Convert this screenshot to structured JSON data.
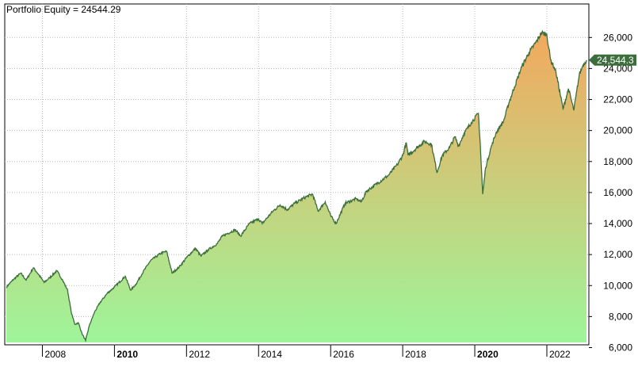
{
  "header": {
    "label": "Portfolio Equity = 24544.29"
  },
  "last_value_tag": "24,544.3",
  "colors": {
    "line": "#3b6e3b",
    "fill_top": "#f3a85e",
    "fill_bottom": "#9ef59a",
    "grid": "#b8b8b8",
    "tag_bg": "#3b6e3b",
    "tag_text": "#ffffff"
  },
  "chart_data": {
    "type": "area",
    "title": "Portfolio Equity = 24544.29",
    "xlabel": "",
    "ylabel": "",
    "xlim": [
      2007.0,
      2023.1
    ],
    "ylim": [
      6000,
      27000
    ],
    "grid": true,
    "y_ticks": [
      6000,
      8000,
      10000,
      12000,
      14000,
      16000,
      18000,
      20000,
      22000,
      24000,
      26000
    ],
    "y_tick_labels": [
      "6,000",
      "8,000",
      "10,000",
      "12,000",
      "14,000",
      "16,000",
      "18,000",
      "20,000",
      "22,000",
      "24,000",
      "26,000"
    ],
    "x_ticks": [
      2008,
      2010,
      2012,
      2014,
      2016,
      2018,
      2020,
      2022
    ],
    "x_tick_labels": [
      "2008",
      "2010",
      "2012",
      "2014",
      "2016",
      "2018",
      "2020",
      "2022"
    ],
    "x_tick_bold": [
      "2010",
      "2020"
    ],
    "series": [
      {
        "last_value": 24544.29,
        "points": [
          [
            2007.0,
            9900
          ],
          [
            2007.2,
            10400
          ],
          [
            2007.4,
            10800
          ],
          [
            2007.55,
            10350
          ],
          [
            2007.75,
            11150
          ],
          [
            2007.9,
            10700
          ],
          [
            2008.05,
            10200
          ],
          [
            2008.2,
            10500
          ],
          [
            2008.4,
            10950
          ],
          [
            2008.55,
            10400
          ],
          [
            2008.7,
            9700
          ],
          [
            2008.8,
            8300
          ],
          [
            2008.9,
            7500
          ],
          [
            2009.0,
            7600
          ],
          [
            2009.1,
            6900
          ],
          [
            2009.2,
            6450
          ],
          [
            2009.3,
            7400
          ],
          [
            2009.45,
            8300
          ],
          [
            2009.6,
            8900
          ],
          [
            2009.8,
            9500
          ],
          [
            2010.0,
            9900
          ],
          [
            2010.3,
            10600
          ],
          [
            2010.45,
            9700
          ],
          [
            2010.6,
            10100
          ],
          [
            2010.8,
            10900
          ],
          [
            2011.0,
            11600
          ],
          [
            2011.3,
            12100
          ],
          [
            2011.45,
            12200
          ],
          [
            2011.6,
            10800
          ],
          [
            2011.8,
            11200
          ],
          [
            2012.0,
            11800
          ],
          [
            2012.25,
            12400
          ],
          [
            2012.4,
            11900
          ],
          [
            2012.6,
            12300
          ],
          [
            2012.85,
            12700
          ],
          [
            2013.0,
            13200
          ],
          [
            2013.35,
            13600
          ],
          [
            2013.5,
            13200
          ],
          [
            2013.75,
            14000
          ],
          [
            2014.0,
            14300
          ],
          [
            2014.1,
            14000
          ],
          [
            2014.4,
            14800
          ],
          [
            2014.6,
            15200
          ],
          [
            2014.8,
            14900
          ],
          [
            2015.0,
            15300
          ],
          [
            2015.3,
            15700
          ],
          [
            2015.5,
            15900
          ],
          [
            2015.65,
            14800
          ],
          [
            2015.85,
            15400
          ],
          [
            2016.0,
            14500
          ],
          [
            2016.15,
            14000
          ],
          [
            2016.4,
            15300
          ],
          [
            2016.7,
            15600
          ],
          [
            2016.85,
            15400
          ],
          [
            2017.0,
            16100
          ],
          [
            2017.3,
            16600
          ],
          [
            2017.6,
            17100
          ],
          [
            2017.85,
            17800
          ],
          [
            2018.0,
            18400
          ],
          [
            2018.1,
            19200
          ],
          [
            2018.15,
            18400
          ],
          [
            2018.4,
            18900
          ],
          [
            2018.6,
            19300
          ],
          [
            2018.8,
            19100
          ],
          [
            2018.95,
            17300
          ],
          [
            2019.1,
            18400
          ],
          [
            2019.3,
            18900
          ],
          [
            2019.45,
            19600
          ],
          [
            2019.55,
            19000
          ],
          [
            2019.7,
            19800
          ],
          [
            2019.9,
            20500
          ],
          [
            2020.1,
            21100
          ],
          [
            2020.15,
            19200
          ],
          [
            2020.22,
            15900
          ],
          [
            2020.3,
            17600
          ],
          [
            2020.45,
            18900
          ],
          [
            2020.6,
            19900
          ],
          [
            2020.8,
            20600
          ],
          [
            2020.95,
            21800
          ],
          [
            2021.1,
            22800
          ],
          [
            2021.3,
            24100
          ],
          [
            2021.5,
            25000
          ],
          [
            2021.7,
            25700
          ],
          [
            2021.85,
            26300
          ],
          [
            2022.0,
            26200
          ],
          [
            2022.1,
            24600
          ],
          [
            2022.25,
            23800
          ],
          [
            2022.45,
            21400
          ],
          [
            2022.6,
            22700
          ],
          [
            2022.75,
            21300
          ],
          [
            2022.9,
            23600
          ],
          [
            2023.0,
            24200
          ],
          [
            2023.1,
            24544.29
          ]
        ]
      }
    ]
  }
}
